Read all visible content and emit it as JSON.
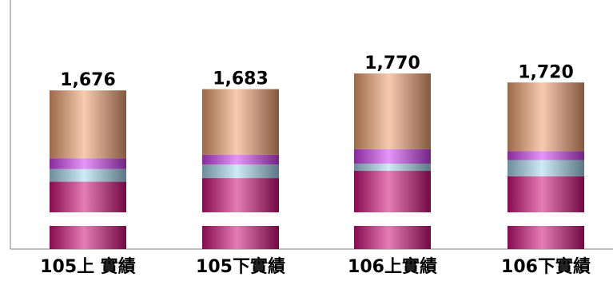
{
  "chart_data": {
    "type": "bar",
    "stacked": true,
    "axis_break": true,
    "categories": [
      "105上 實績",
      "105下實績",
      "106上實績",
      "106下實績"
    ],
    "totals": [
      1676,
      1683,
      1770,
      1720
    ],
    "total_labels": [
      "1,676",
      "1,683",
      "1,770",
      "1,720"
    ],
    "series": [
      {
        "color": "#d0107a",
        "values": [
          1170,
          1190,
          1230,
          1200
        ]
      },
      {
        "color": "#a8d8f0",
        "values": [
          70,
          75,
          40,
          90
        ]
      },
      {
        "color": "#d040f0",
        "values": [
          60,
          55,
          80,
          50
        ]
      },
      {
        "color": "#f0a070",
        "values": [
          376,
          363,
          420,
          380
        ]
      }
    ],
    "grid": false,
    "legend": "none"
  }
}
